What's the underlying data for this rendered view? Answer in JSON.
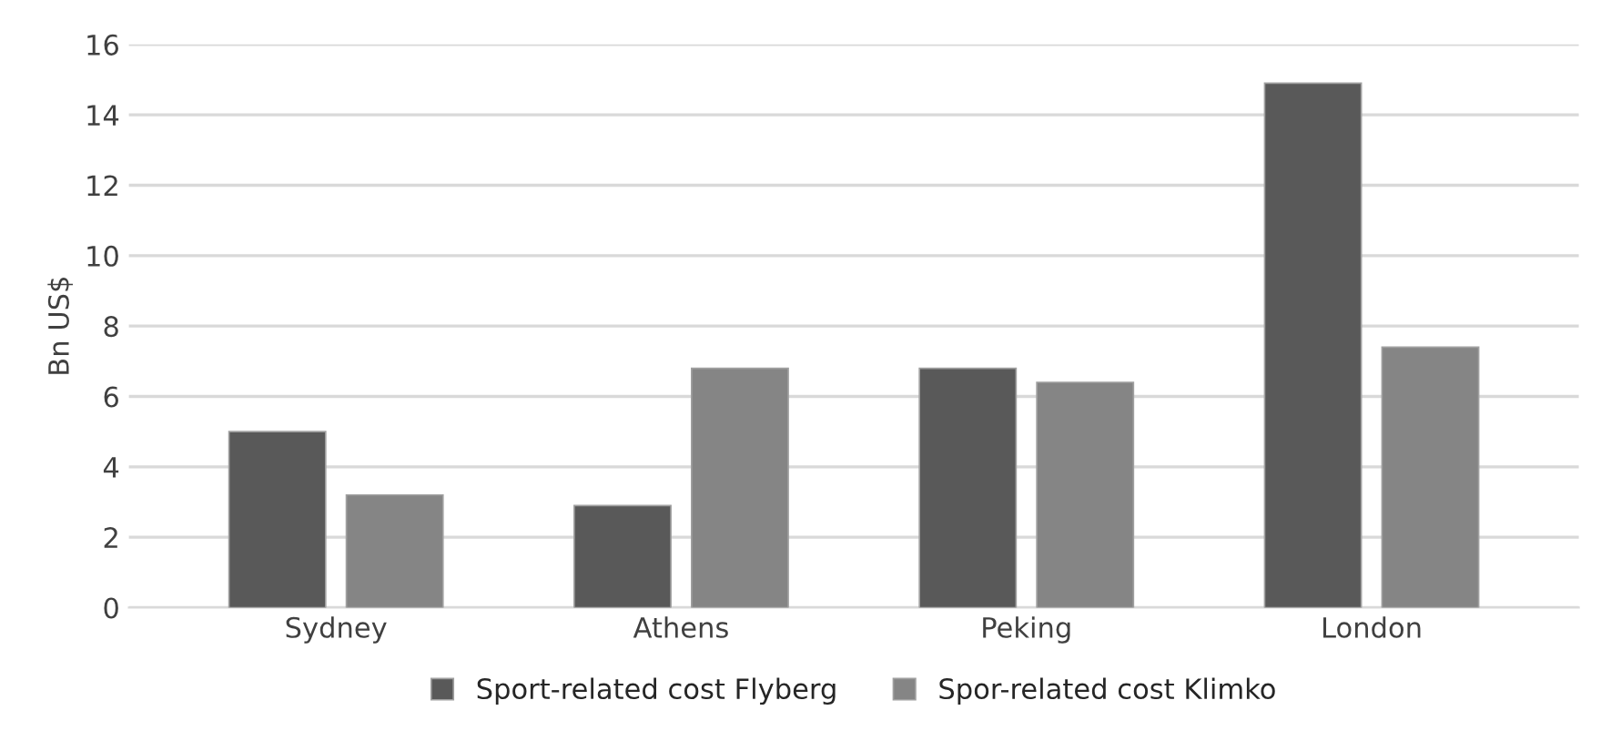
{
  "chart_data": {
    "type": "bar",
    "ylabel": "Bn US$",
    "categories": [
      "Sydney",
      "Athens",
      "Peking",
      "London"
    ],
    "series": [
      {
        "name": "Sport-related cost Flyberg",
        "color": "#595959",
        "values": [
          5.0,
          2.9,
          6.8,
          14.9
        ]
      },
      {
        "name": "Spor-related cost Klimko",
        "color": "#858585",
        "values": [
          3.2,
          6.8,
          6.4,
          7.4
        ]
      }
    ],
    "ylim": [
      0,
      16
    ],
    "yticks": [
      0,
      2,
      4,
      6,
      8,
      10,
      12,
      14,
      16
    ],
    "grid": "y",
    "legend": "bottom"
  }
}
